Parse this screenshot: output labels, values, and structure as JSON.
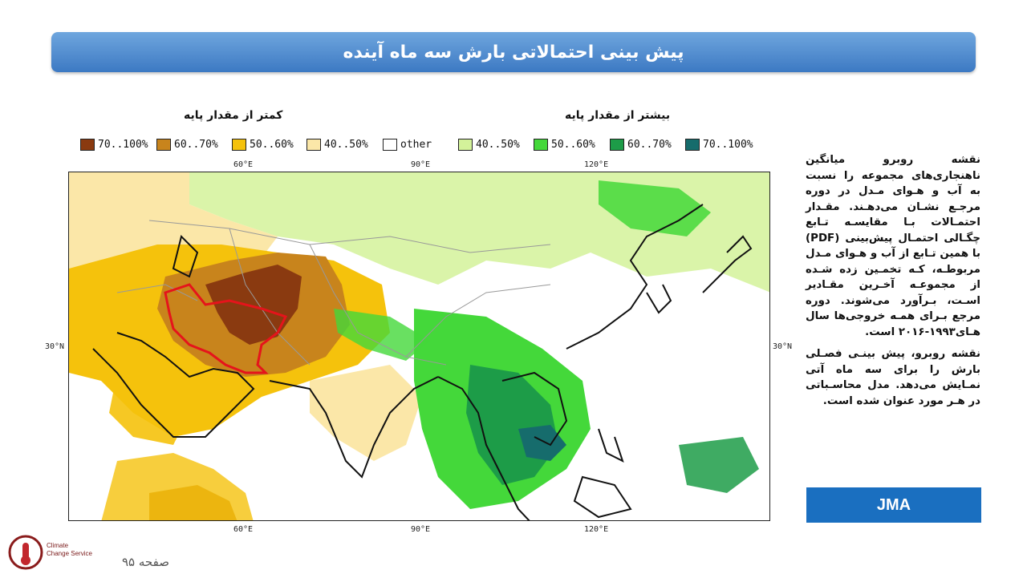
{
  "title": "پیش بینی احتمالاتی بارش سه ماه آینده",
  "legend": {
    "below_title": "کمتر از مقدار پایه",
    "above_title": "بیشتر از مقدار پایه",
    "items": [
      {
        "label": "70..100%",
        "color": "#8a3a10"
      },
      {
        "label": "60..70%",
        "color": "#c8841c"
      },
      {
        "label": "50..60%",
        "color": "#f5c20c"
      },
      {
        "label": "40..50%",
        "color": "#fbe7a8"
      },
      {
        "label": "other",
        "color": "#ffffff"
      },
      {
        "label": "40..50%",
        "color": "#d3f29a"
      },
      {
        "label": "50..60%",
        "color": "#44d83a"
      },
      {
        "label": "60..70%",
        "color": "#1d9c48"
      },
      {
        "label": "70..100%",
        "color": "#166c6c"
      }
    ]
  },
  "map": {
    "lon_ticks": [
      "60°E",
      "90°E",
      "120°E"
    ],
    "lat_tick": "30°N",
    "highlight_region_color": "#e5141b"
  },
  "description": {
    "p1": "نقشه روبرو میانگین ناهنجاری‌های مجموعه را نسبت به آب و هـوای مـدل در دوره مرجـع نشـان می‌دهـند. مقـدار احتمـالات بـا مقایسـه تـابع چگـالی احتمـال پیش‌بینی (PDF) با همین تـابع از آب و هـوای مـدل مربوطـه، کـه تخمـین زده شـده از مجموعـه آخـرین مقـادیر اسـت، بـرآورد می‌شوند. دوره مرجع بـرای همـه خروجی‌ها سال هـای۱۹۹۳-۲۰۱۶ است.",
    "p2": "نقشه روبرو، پیش بینـی فصـلی بارش را برای سه ماه آتی نمـایش می‌دهد. مدل محاسـباتی در هـر مورد عنوان شده است."
  },
  "model_label": "JMA",
  "logo": {
    "line1": "Climate",
    "line2": "Change Service"
  },
  "page_number": "صفحه ۹۵"
}
